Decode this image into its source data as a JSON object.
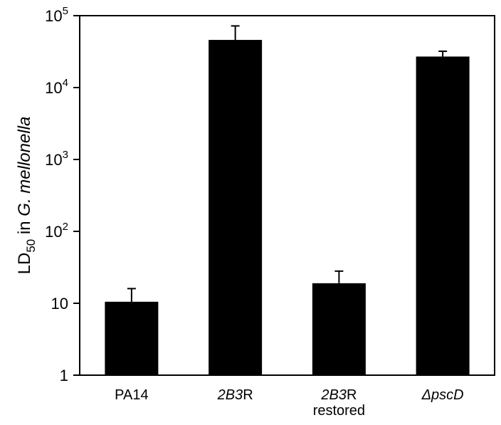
{
  "chart_data": {
    "type": "bar",
    "categories": [
      {
        "parts": [
          {
            "t": "PA14",
            "i": false
          }
        ]
      },
      {
        "parts": [
          {
            "t": "2B3",
            "i": true
          },
          {
            "t": "R",
            "i": false
          }
        ]
      },
      {
        "parts": [
          {
            "t": "2B3",
            "i": true
          },
          {
            "t": "R",
            "i": false
          }
        ],
        "line2": "restored"
      },
      {
        "parts": [
          {
            "t": "ΔpscD",
            "i": true
          }
        ]
      }
    ],
    "values": [
      10.5,
      46000,
      19,
      27000
    ],
    "error_upper": [
      16,
      72000,
      28,
      32000
    ],
    "yscale": "log",
    "ylim": [
      1,
      100000
    ],
    "yticks": [
      {
        "value": 1,
        "base": "1",
        "exp": ""
      },
      {
        "value": 10,
        "base": "10",
        "exp": ""
      },
      {
        "value": 100,
        "base": "10",
        "exp": "2"
      },
      {
        "value": 1000,
        "base": "10",
        "exp": "3"
      },
      {
        "value": 10000,
        "base": "10",
        "exp": "4"
      },
      {
        "value": 100000,
        "base": "10",
        "exp": "5"
      }
    ],
    "ylabel": {
      "main": "LD",
      "sub": "50",
      "rest": " in ",
      "italic": "G. mellonella"
    },
    "xlabel": "",
    "bar_color": "#000000",
    "grid": false,
    "legend": "none"
  }
}
